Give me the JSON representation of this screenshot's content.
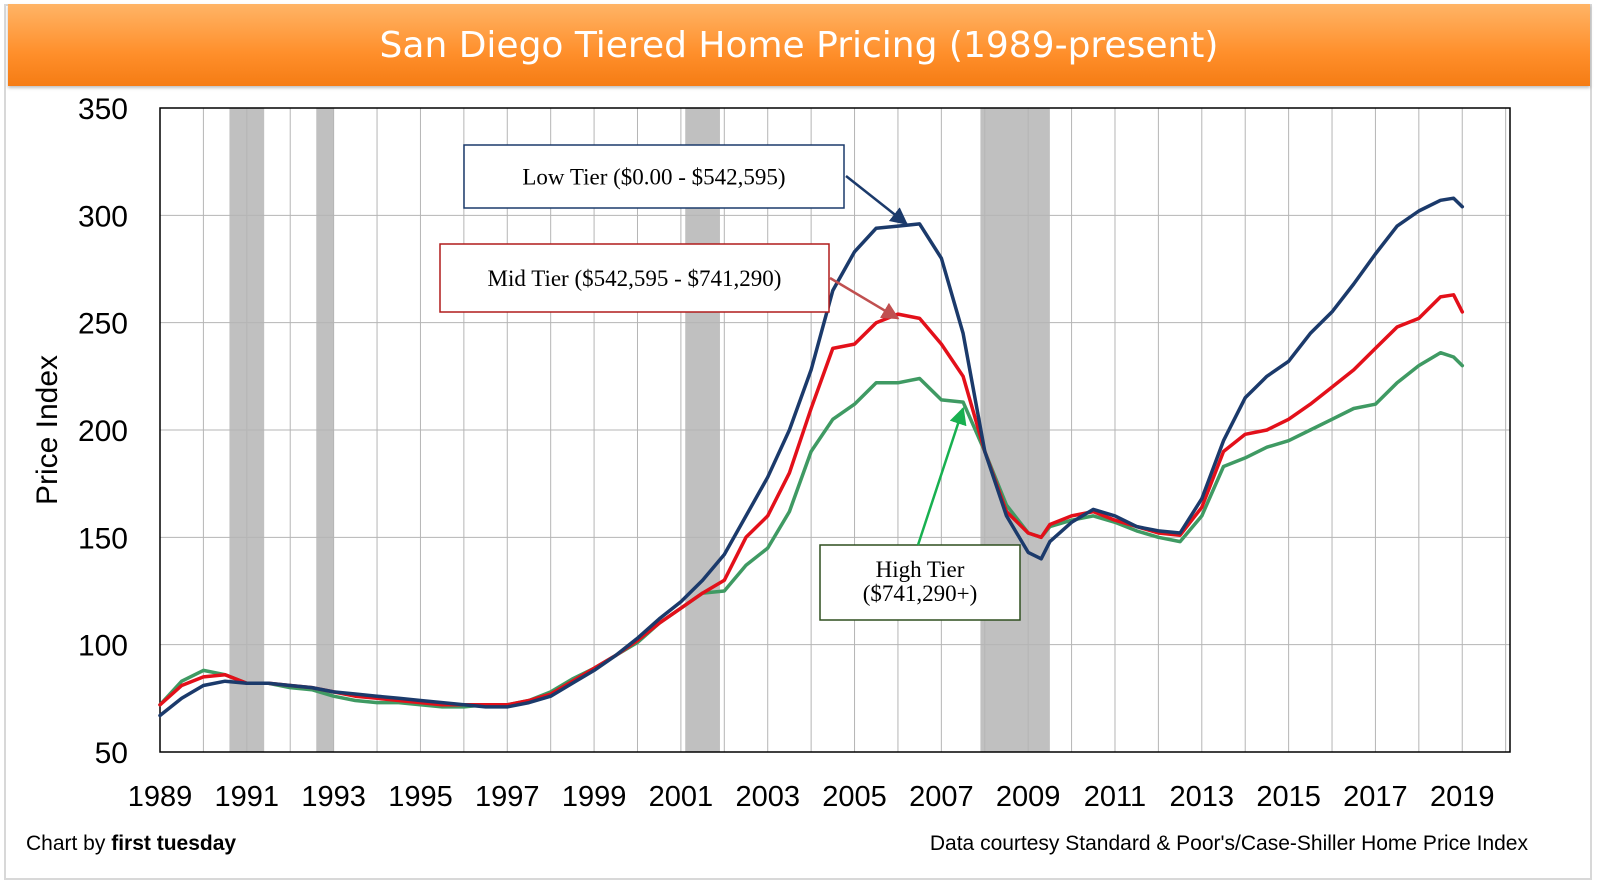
{
  "title": "San Diego Tiered Home Pricing (1989-present)",
  "footer": {
    "credit_prefix": "Chart by ",
    "credit_name": "first tuesday",
    "source": "Data courtesy Standard & Poor's/Case-Shiller Home Price Index"
  },
  "colors": {
    "title_bar": "#ff8f2b",
    "low_tier": "#1b3a6b",
    "mid_tier": "#e3101a",
    "high_tier": "#3f9a63",
    "recession": "#c0c0c0",
    "grid": "#b5b5b5"
  },
  "chart_data": {
    "type": "line",
    "title": "San Diego Tiered Home Pricing (1989-present)",
    "xlabel": "",
    "ylabel": "Price Index",
    "xlim": [
      1989,
      2020.1
    ],
    "ylim": [
      50,
      350
    ],
    "x_ticks": [
      "1989",
      "1991",
      "1993",
      "1995",
      "1997",
      "1999",
      "2001",
      "2003",
      "2005",
      "2007",
      "2009",
      "2011",
      "2013",
      "2015",
      "2017",
      "2019"
    ],
    "y_ticks": [
      "50",
      "100",
      "150",
      "200",
      "250",
      "300",
      "350"
    ],
    "grid": true,
    "recession_bands": [
      [
        1990.6,
        1991.4
      ],
      [
        1992.6,
        1993.0
      ],
      [
        2001.1,
        2001.9
      ],
      [
        2007.9,
        2009.5
      ]
    ],
    "x": [
      1989.0,
      1989.5,
      1990.0,
      1990.5,
      1991.0,
      1991.5,
      1992.0,
      1992.5,
      1993.0,
      1993.5,
      1994.0,
      1994.5,
      1995.0,
      1995.5,
      1996.0,
      1996.5,
      1997.0,
      1997.5,
      1998.0,
      1998.5,
      1999.0,
      1999.5,
      2000.0,
      2000.5,
      2001.0,
      2001.5,
      2002.0,
      2002.5,
      2003.0,
      2003.5,
      2004.0,
      2004.5,
      2005.0,
      2005.5,
      2006.0,
      2006.5,
      2007.0,
      2007.5,
      2008.0,
      2008.5,
      2009.0,
      2009.3,
      2009.5,
      2010.0,
      2010.5,
      2011.0,
      2011.5,
      2012.0,
      2012.5,
      2013.0,
      2013.5,
      2014.0,
      2014.5,
      2015.0,
      2015.5,
      2016.0,
      2016.5,
      2017.0,
      2017.5,
      2018.0,
      2018.5,
      2018.8,
      2019.0
    ],
    "series": [
      {
        "name": "Low Tier ($0.00 - $542,595)",
        "values": [
          67,
          75,
          81,
          83,
          82,
          82,
          81,
          80,
          78,
          77,
          76,
          75,
          74,
          73,
          72,
          71,
          71,
          73,
          76,
          82,
          88,
          95,
          103,
          112,
          120,
          130,
          142,
          160,
          178,
          200,
          228,
          265,
          283,
          294,
          295,
          296,
          280,
          245,
          190,
          160,
          143,
          140,
          148,
          157,
          163,
          160,
          155,
          153,
          152,
          168,
          195,
          215,
          225,
          232,
          245,
          255,
          268,
          282,
          295,
          302,
          307,
          308,
          304
        ]
      },
      {
        "name": "Mid Tier ($542,595 - $741,290)",
        "values": [
          72,
          81,
          85,
          86,
          82,
          82,
          81,
          80,
          78,
          76,
          75,
          74,
          73,
          72,
          72,
          72,
          72,
          74,
          77,
          83,
          89,
          95,
          102,
          110,
          117,
          124,
          130,
          150,
          160,
          180,
          210,
          238,
          240,
          250,
          254,
          252,
          240,
          225,
          190,
          162,
          152,
          150,
          156,
          160,
          162,
          158,
          155,
          152,
          151,
          164,
          190,
          198,
          200,
          205,
          212,
          220,
          228,
          238,
          248,
          252,
          262,
          263,
          255
        ]
      },
      {
        "name": "High Tier ($741,290+)",
        "values": [
          72,
          83,
          88,
          86,
          82,
          82,
          80,
          79,
          76,
          74,
          73,
          73,
          72,
          71,
          71,
          72,
          72,
          74,
          78,
          84,
          89,
          95,
          101,
          110,
          117,
          124,
          125,
          137,
          145,
          162,
          190,
          205,
          212,
          222,
          222,
          224,
          214,
          213,
          190,
          165,
          152,
          150,
          155,
          158,
          160,
          157,
          153,
          150,
          148,
          160,
          183,
          187,
          192,
          195,
          200,
          205,
          210,
          212,
          222,
          230,
          236,
          234,
          230
        ]
      }
    ],
    "annotations": [
      {
        "text": "Low Tier ($0.00 - $542,595)",
        "points_to": [
          2006.2,
          296
        ]
      },
      {
        "text": "Mid Tier ($542,595 - $741,290)",
        "points_to": [
          2006.0,
          252
        ]
      },
      {
        "lines": [
          "High Tier",
          "($741,290+)"
        ],
        "points_to": [
          2007.5,
          210
        ]
      }
    ]
  }
}
